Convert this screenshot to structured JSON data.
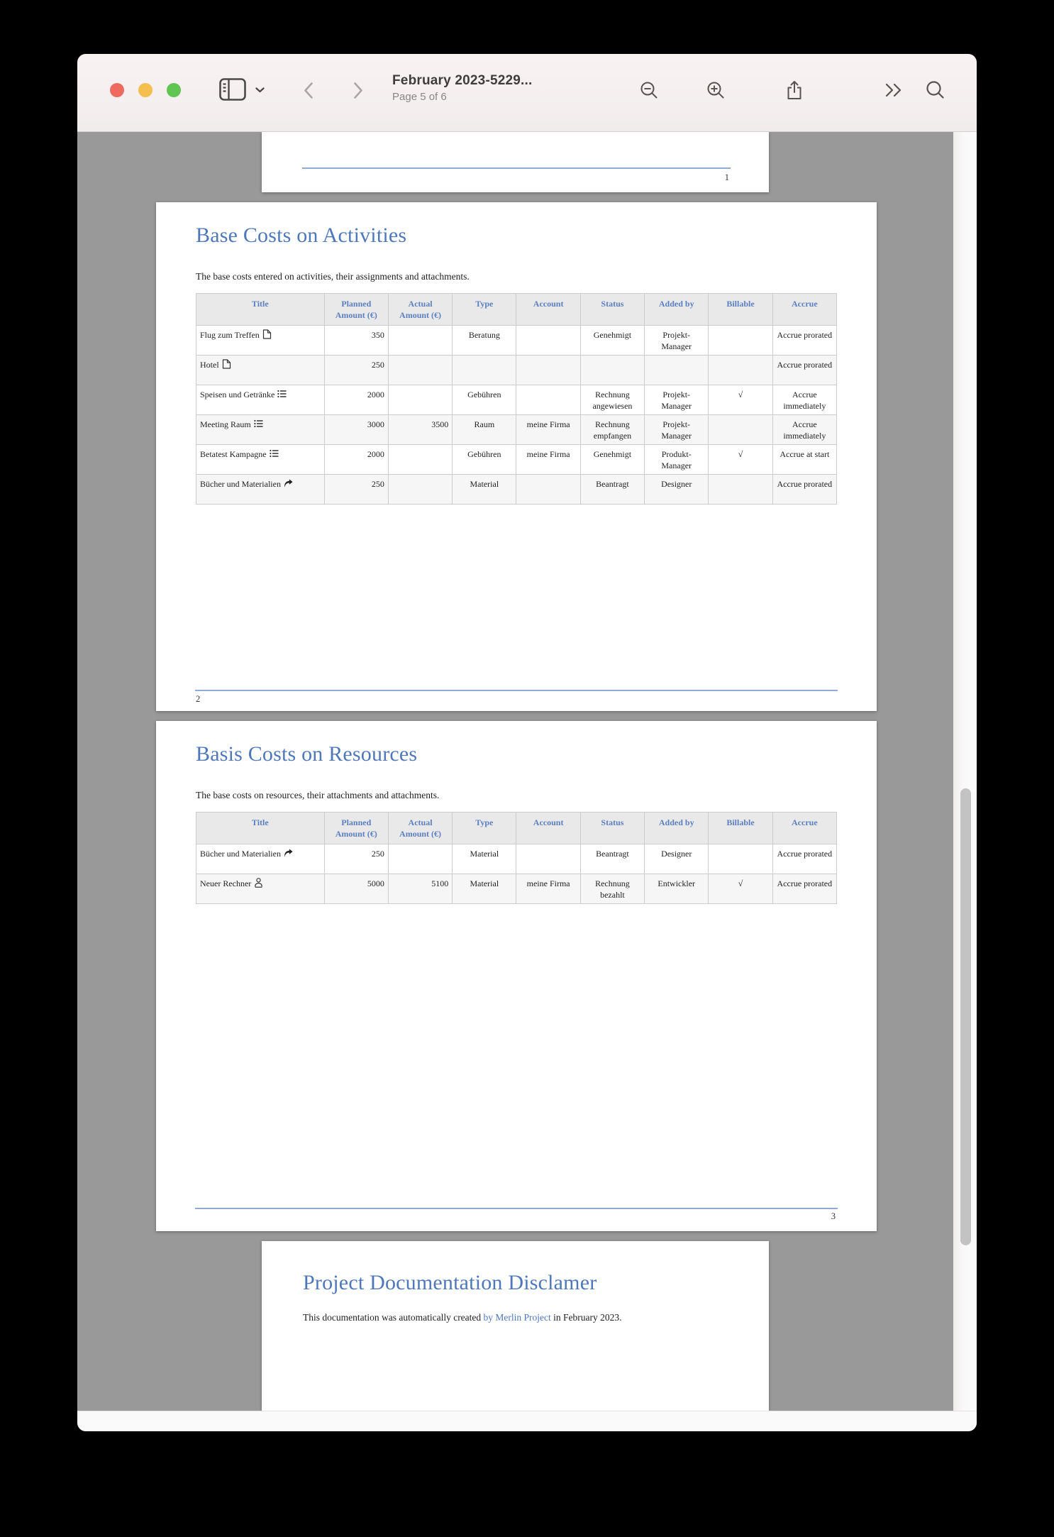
{
  "toolbar": {
    "title": "February 2023-5229...",
    "subtitle": "Page 5 of 6",
    "icons": [
      "sidebar-icon",
      "chevron-down-icon",
      "back-icon",
      "forward-icon",
      "zoom-out-icon",
      "zoom-in-icon",
      "share-icon",
      "more-icon",
      "search-icon"
    ],
    "traffic_lights": [
      "close",
      "minimize",
      "fullscreen"
    ]
  },
  "colors": {
    "traffic_red": "#ed6a5e",
    "traffic_yellow": "#f4bf4f",
    "traffic_green": "#61c554",
    "heading_blue": "#4e78ba",
    "table_header_blue": "#5b7fc0",
    "footer_line_blue": "#8fabd3",
    "desktop_gray": "#999999"
  },
  "pages": {
    "page1": {
      "number": "1"
    },
    "page2": {
      "heading": "Base Costs on Activities",
      "subtitle": "The base costs entered on activities, their assignments and attachments.",
      "number": "2",
      "table": {
        "columns": [
          {
            "key": "title",
            "label": "Title",
            "align": "left",
            "width": "20%"
          },
          {
            "key": "planned",
            "label": "Planned\nAmount (€)",
            "align": "right",
            "width": "10%"
          },
          {
            "key": "actual",
            "label": "Actual\nAmount (€)",
            "align": "right",
            "width": "10%"
          },
          {
            "key": "type",
            "label": "Type",
            "align": "center",
            "width": "10%"
          },
          {
            "key": "account",
            "label": "Account",
            "align": "center",
            "width": "10%"
          },
          {
            "key": "status",
            "label": "Status",
            "align": "center",
            "width": "10%"
          },
          {
            "key": "added_by",
            "label": "Added by",
            "align": "center",
            "width": "10%"
          },
          {
            "key": "billable",
            "label": "Billable",
            "align": "center",
            "width": "10%"
          },
          {
            "key": "accrue",
            "label": "Accrue",
            "align": "center",
            "width": "10%"
          }
        ],
        "rows": [
          {
            "title": "Flug zum Treffen",
            "icon": "document-icon",
            "planned": "350",
            "actual": "",
            "type": "Beratung",
            "account": "",
            "status": "Genehmigt",
            "added_by": "Projekt-Manager",
            "billable": "",
            "accrue": "Accrue prorated"
          },
          {
            "title": "Hotel",
            "icon": "document-icon",
            "planned": "250",
            "actual": "",
            "type": "",
            "account": "",
            "status": "",
            "added_by": "",
            "billable": "",
            "accrue": "Accrue prorated"
          },
          {
            "title": "Speisen und Getränke",
            "icon": "checklist-icon",
            "planned": "2000",
            "actual": "",
            "type": "Gebühren",
            "account": "",
            "status": "Rechnung angewiesen",
            "added_by": "Projekt-Manager",
            "billable": "√",
            "accrue": "Accrue immediately"
          },
          {
            "title": "Meeting Raum",
            "icon": "checklist-icon",
            "planned": "3000",
            "actual": "3500",
            "type": "Raum",
            "account": "meine Firma",
            "status": "Rechnung empfangen",
            "added_by": "Projekt-Manager",
            "billable": "",
            "accrue": "Accrue immediately"
          },
          {
            "title": "Betatest Kampagne",
            "icon": "checklist-icon",
            "planned": "2000",
            "actual": "",
            "type": "Gebühren",
            "account": "meine Firma",
            "status": "Genehmigt",
            "added_by": "Produkt-Manager",
            "billable": "√",
            "accrue": "Accrue at start"
          },
          {
            "title": "Bücher und Materialien",
            "icon": "curved-arrow-icon",
            "planned": "250",
            "actual": "",
            "type": "Material",
            "account": "",
            "status": "Beantragt",
            "added_by": "Designer",
            "billable": "",
            "accrue": "Accrue prorated"
          }
        ]
      }
    },
    "page3": {
      "heading": "Basis Costs on Resources",
      "subtitle": "The base costs on resources, their attachments and attachments.",
      "number": "3",
      "table": {
        "columns": [
          {
            "key": "title",
            "label": "Title",
            "align": "left",
            "width": "20%"
          },
          {
            "key": "planned",
            "label": "Planned\nAmount (€)",
            "align": "right",
            "width": "10%"
          },
          {
            "key": "actual",
            "label": "Actual\nAmount (€)",
            "align": "right",
            "width": "10%"
          },
          {
            "key": "type",
            "label": "Type",
            "align": "center",
            "width": "10%"
          },
          {
            "key": "account",
            "label": "Account",
            "align": "center",
            "width": "10%"
          },
          {
            "key": "status",
            "label": "Status",
            "align": "center",
            "width": "10%"
          },
          {
            "key": "added_by",
            "label": "Added by",
            "align": "center",
            "width": "10%"
          },
          {
            "key": "billable",
            "label": "Billable",
            "align": "center",
            "width": "10%"
          },
          {
            "key": "accrue",
            "label": "Accrue",
            "align": "center",
            "width": "10%"
          }
        ],
        "rows": [
          {
            "title": "Bücher und Materialien",
            "icon": "curved-arrow-icon",
            "planned": "250",
            "actual": "",
            "type": "Material",
            "account": "",
            "status": "Beantragt",
            "added_by": "Designer",
            "billable": "",
            "accrue": "Accrue prorated"
          },
          {
            "title": "Neuer Rechner",
            "icon": "person-icon",
            "planned": "5000",
            "actual": "5100",
            "type": "Material",
            "account": "meine Firma",
            "status": "Rechnung bezahlt",
            "added_by": "Entwickler",
            "billable": "√",
            "accrue": "Accrue prorated"
          }
        ]
      }
    },
    "page4": {
      "heading": "Project Documentation Disclamer",
      "body": {
        "prefix": "This documentation was automatically created ",
        "link": "by Merlin Project",
        "suffix": " in February 2023."
      }
    }
  }
}
